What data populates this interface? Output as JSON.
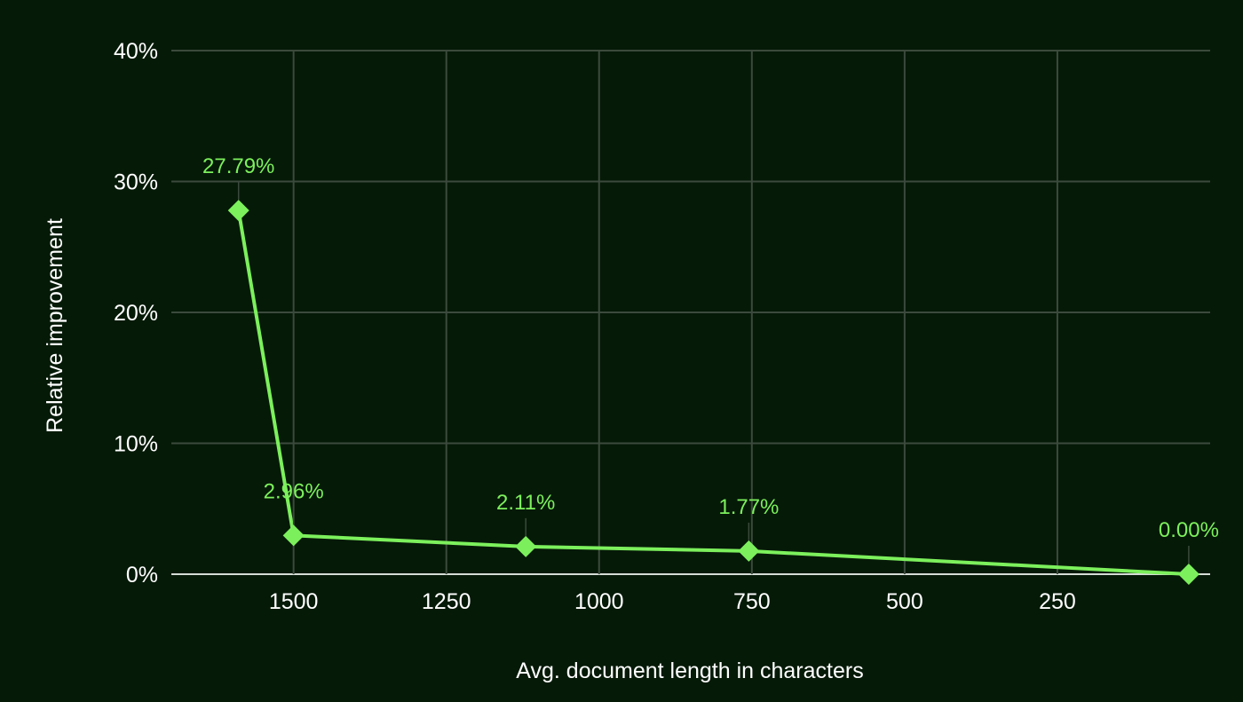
{
  "chart_data": {
    "type": "line",
    "xlabel": "Avg. document length in characters",
    "ylabel": "Relative improvement",
    "x_axis_reversed": true,
    "xlim": [
      1700,
      0
    ],
    "ylim": [
      0,
      40
    ],
    "x_ticks": [
      1500,
      1250,
      1000,
      750,
      500,
      250
    ],
    "y_ticks": [
      0,
      10,
      20,
      30,
      40
    ],
    "y_tick_labels": [
      "0%",
      "10%",
      "20%",
      "30%",
      "40%"
    ],
    "grid": true,
    "series": [
      {
        "x": [
          1590,
          1500,
          1120,
          755,
          35
        ],
        "values": [
          27.79,
          2.96,
          2.11,
          1.77,
          0.0
        ],
        "data_labels": [
          "27.79%",
          "2.96%",
          "2.11%",
          "1.77%",
          "0.00%"
        ],
        "color": "#7cf05c",
        "marker": "diamond"
      }
    ]
  }
}
